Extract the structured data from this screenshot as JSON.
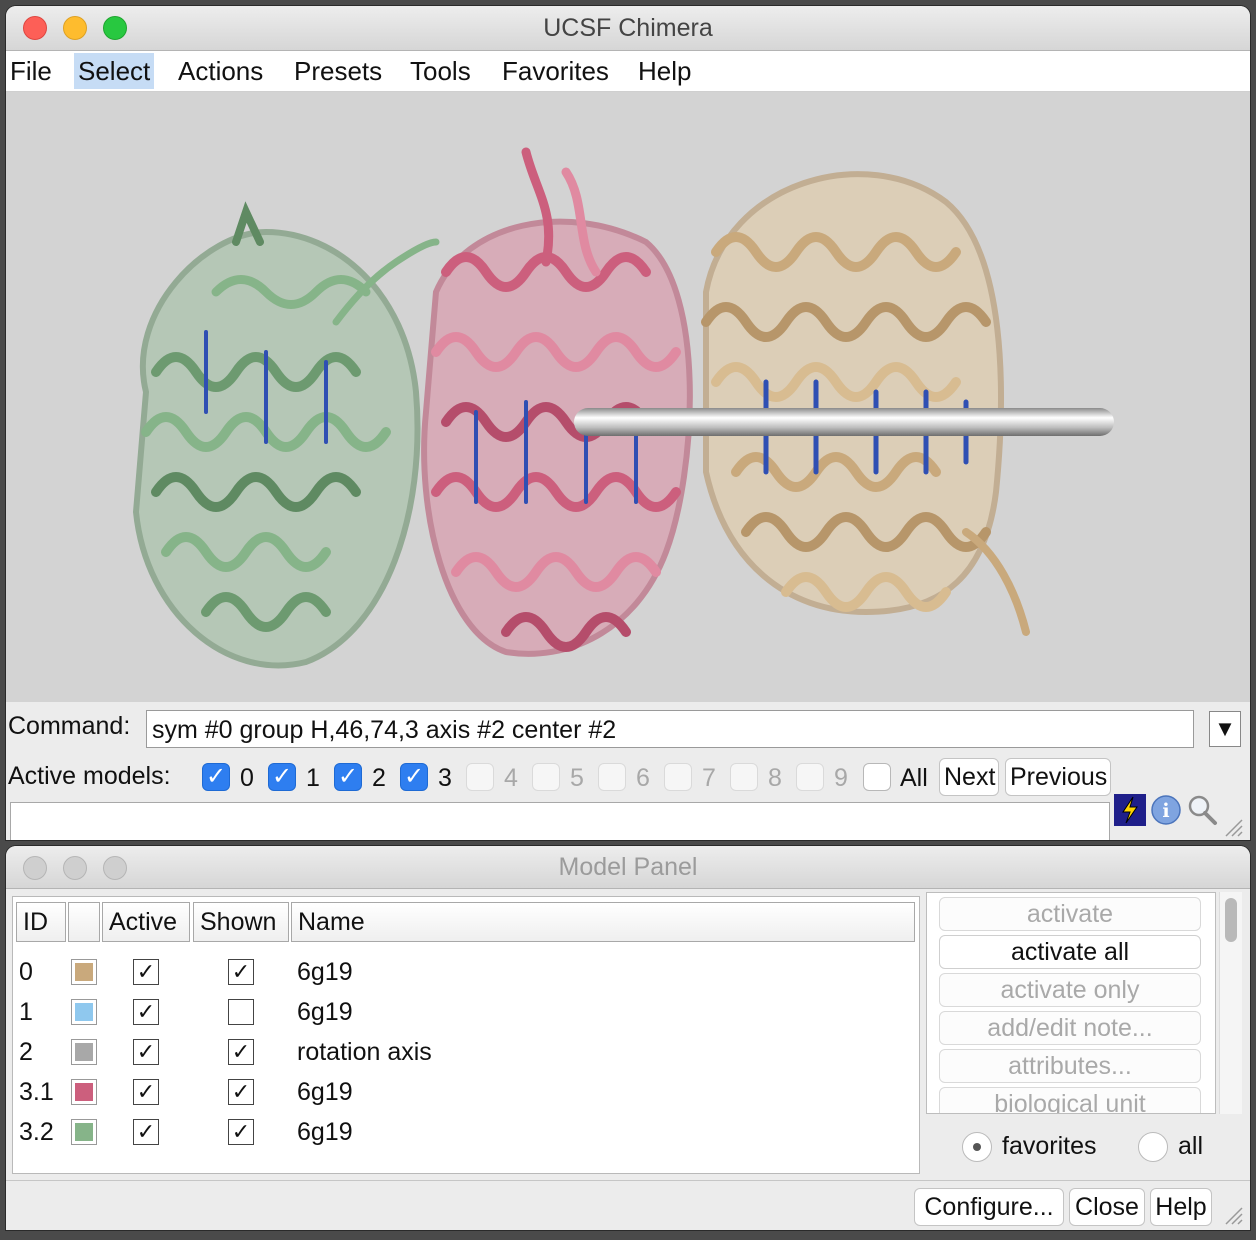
{
  "main_window": {
    "title": "UCSF Chimera",
    "menu": [
      "File",
      "Select",
      "Actions",
      "Presets",
      "Tools",
      "Favorites",
      "Help"
    ],
    "selected_menu_index": 1,
    "command_label": "Command:",
    "command_value": "sym #0 group H,46,74,3 axis #2 center #2",
    "active_models_label": "Active models:",
    "active_models": [
      {
        "num": "0",
        "checked": true,
        "enabled": true
      },
      {
        "num": "1",
        "checked": true,
        "enabled": true
      },
      {
        "num": "2",
        "checked": true,
        "enabled": true
      },
      {
        "num": "3",
        "checked": true,
        "enabled": true
      },
      {
        "num": "4",
        "checked": false,
        "enabled": false
      },
      {
        "num": "5",
        "checked": false,
        "enabled": false
      },
      {
        "num": "6",
        "checked": false,
        "enabled": false
      },
      {
        "num": "7",
        "checked": false,
        "enabled": false
      },
      {
        "num": "8",
        "checked": false,
        "enabled": false
      },
      {
        "num": "9",
        "checked": false,
        "enabled": false
      }
    ],
    "all_label": "All",
    "next_label": "Next",
    "previous_label": "Previous",
    "viewer_bg": "#d3d3d3",
    "icons": [
      "lightning-icon",
      "info-icon",
      "magnifier-icon"
    ]
  },
  "model_panel": {
    "title": "Model Panel",
    "columns": [
      "ID",
      "",
      "Active",
      "Shown",
      "Name"
    ],
    "rows": [
      {
        "id": "0",
        "color": "#c9a97c",
        "active": true,
        "shown": true,
        "name": "6g19"
      },
      {
        "id": "1",
        "color": "#8fc8ee",
        "active": true,
        "shown": false,
        "name": "6g19"
      },
      {
        "id": "2",
        "color": "#a8a8a8",
        "active": true,
        "shown": true,
        "name": "rotation axis"
      },
      {
        "id": "3.1",
        "color": "#cc5f7d",
        "active": true,
        "shown": true,
        "name": "6g19"
      },
      {
        "id": "3.2",
        "color": "#86b489",
        "active": true,
        "shown": true,
        "name": "6g19"
      }
    ],
    "actions": [
      {
        "label": "activate",
        "enabled": false
      },
      {
        "label": "activate all",
        "enabled": true
      },
      {
        "label": "activate only",
        "enabled": false
      },
      {
        "label": "add/edit note...",
        "enabled": false
      },
      {
        "label": "attributes...",
        "enabled": false
      },
      {
        "label": "biological unit",
        "enabled": false
      }
    ],
    "radio_favorites": "favorites",
    "radio_all": "all",
    "radio_selected": "favorites",
    "configure_label": "Configure...",
    "close_label": "Close",
    "help_label": "Help"
  }
}
